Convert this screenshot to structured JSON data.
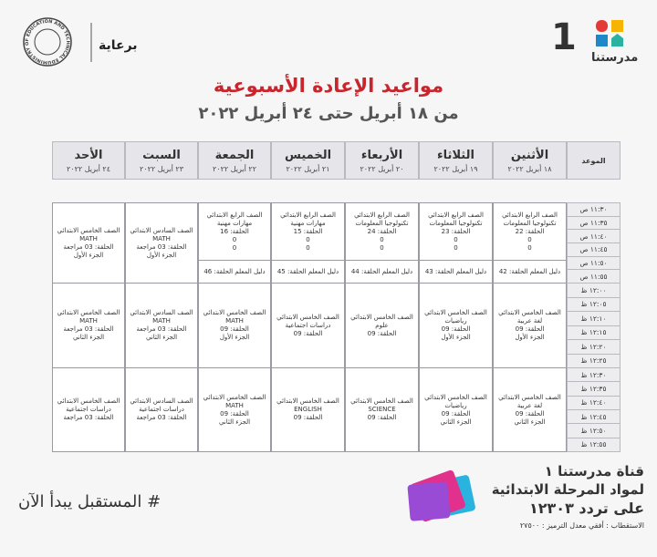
{
  "header": {
    "title": "مواعيد الإعادة الأسبوعية",
    "subtitle": "من ١٨ أبريل حتى ٢٤ أبريل ٢٠٢٢",
    "sponsor": "برعاية",
    "channel_number": "1",
    "logo_text": "مدرستنا",
    "ministry_seal": "MINISTRY OF EDUCATION AND TECHNICAL EDUCATION"
  },
  "table": {
    "time_header": "الموعد",
    "days": [
      {
        "name": "الأثنين",
        "date": "١٨ أبريل ٢٠٢٢"
      },
      {
        "name": "الثلاثاء",
        "date": "١٩ أبريل ٢٠٢٢"
      },
      {
        "name": "الأربعاء",
        "date": "٢٠ أبريل ٢٠٢٢"
      },
      {
        "name": "الخميس",
        "date": "٢١ أبريل ٢٠٢٢"
      },
      {
        "name": "الجمعة",
        "date": "٢٢ أبريل ٢٠٢٢"
      },
      {
        "name": "السبت",
        "date": "٢٣ أبريل ٢٠٢٢"
      },
      {
        "name": "الأحد",
        "date": "٢٤ أبريل ٢٠٢٢"
      }
    ],
    "times": [
      "١١:٣٠ ص",
      "١١:٣٥ ص",
      "١١:٤٠ ص",
      "١١:٤٥ ص",
      "١١:٥٠ ص",
      "١١:٥٥ ص",
      "١٢:٠٠ ظ",
      "١٢:٠٥ ظ",
      "١٢:١٠ ظ",
      "١٢:١٥ ظ",
      "١٢:٢٠ ظ",
      "١٢:٢٥ ظ",
      "١٢:٣٠ ظ",
      "١٢:٣٥ ظ",
      "١٢:٤٠ ظ",
      "١٢:٤٥ ظ",
      "١٢:٥٠ ظ",
      "١٢:٥٥ ظ"
    ],
    "blocks": [
      {
        "cells": [
          {
            "lines": [
              "الصف الرابع الابتدائي",
              "تكنولوجيا المعلومات",
              "الحلقة: 22",
              "0",
              "0"
            ],
            "guide": "دليل المعلم الحلقة: 42"
          },
          {
            "lines": [
              "الصف الرابع الابتدائي",
              "تكنولوجيا المعلومات",
              "الحلقة: 23",
              "0",
              "0"
            ],
            "guide": "دليل المعلم الحلقة: 43"
          },
          {
            "lines": [
              "الصف الرابع الابتدائي",
              "تكنولوجيا المعلومات",
              "الحلقة: 24",
              "0",
              "0"
            ],
            "guide": "دليل المعلم الحلقة: 44"
          },
          {
            "lines": [
              "الصف الرابع الابتدائي",
              "مهارات مهنية",
              "الحلقة: 15",
              "0",
              "0"
            ],
            "guide": "دليل المعلم الحلقة: 45"
          },
          {
            "lines": [
              "الصف الرابع الابتدائي",
              "مهارات مهنية",
              "الحلقة: 16",
              "0",
              "0"
            ],
            "guide": "دليل المعلم الحلقة: 46"
          },
          {
            "lines": [
              "الصف السادس الابتدائي",
              "MATH",
              "الحلقة: 03 مراجعة",
              "الجزء الأول"
            ]
          },
          {
            "lines": [
              "الصف الخامس الابتدائي",
              "MATH",
              "الحلقة: 03 مراجعة",
              "الجزء الأول"
            ]
          }
        ]
      },
      {
        "cells": [
          {
            "lines": [
              "الصف الخامس الابتدائي",
              "لغة عربية",
              "الحلقة: 09",
              "الجزء الأول"
            ]
          },
          {
            "lines": [
              "الصف الخامس الابتدائي",
              "رياضيات",
              "الحلقة: 09",
              "الجزء الأول"
            ]
          },
          {
            "lines": [
              "الصف الخامس الابتدائي",
              "علوم",
              "الحلقة: 09"
            ]
          },
          {
            "lines": [
              "الصف الخامس الابتدائي",
              "دراسات اجتماعية",
              "الحلقة: 09"
            ]
          },
          {
            "lines": [
              "الصف الخامس الابتدائي",
              "MATH",
              "الحلقة: 09",
              "الجزء الأول"
            ]
          },
          {
            "lines": [
              "الصف السادس الابتدائي",
              "MATH",
              "الحلقة: 03 مراجعة",
              "الجزء الثاني"
            ]
          },
          {
            "lines": [
              "الصف الخامس الابتدائي",
              "MATH",
              "الحلقة: 03 مراجعة",
              "الجزء الثاني"
            ]
          }
        ]
      },
      {
        "cells": [
          {
            "lines": [
              "الصف الخامس الابتدائي",
              "لغة عربية",
              "الحلقة: 09",
              "الجزء الثاني"
            ]
          },
          {
            "lines": [
              "الصف الخامس الابتدائي",
              "رياضيات",
              "الحلقة: 09",
              "الجزء الثاني"
            ]
          },
          {
            "lines": [
              "الصف الخامس الابتدائي",
              "SCIENCE",
              "الحلقة: 09"
            ]
          },
          {
            "lines": [
              "الصف الخامس الابتدائي",
              "ENGLISH",
              "الحلقة: 09"
            ]
          },
          {
            "lines": [
              "الصف الخامس الابتدائي",
              "MATH",
              "الحلقة: 09",
              "الجزء الثاني"
            ]
          },
          {
            "lines": [
              "الصف السادس الابتدائي",
              "دراسات اجتماعية",
              "الحلقة: 03 مراجعة"
            ]
          },
          {
            "lines": [
              "الصف الخامس الابتدائي",
              "دراسات اجتماعية",
              "الحلقة: 03 مراجعة"
            ]
          }
        ]
      }
    ]
  },
  "footer": {
    "hashtag": "# المستقبل يبدأ الآن",
    "channel_name": "قناة مدرستنا ١",
    "channel_desc": "لمواد المرحلة الابتدائية",
    "frequency": "على تردد ١٢٣٠٣",
    "specs": "الاستقطاب : أفقي معدل الترميز : ٢٧٥٠٠"
  }
}
